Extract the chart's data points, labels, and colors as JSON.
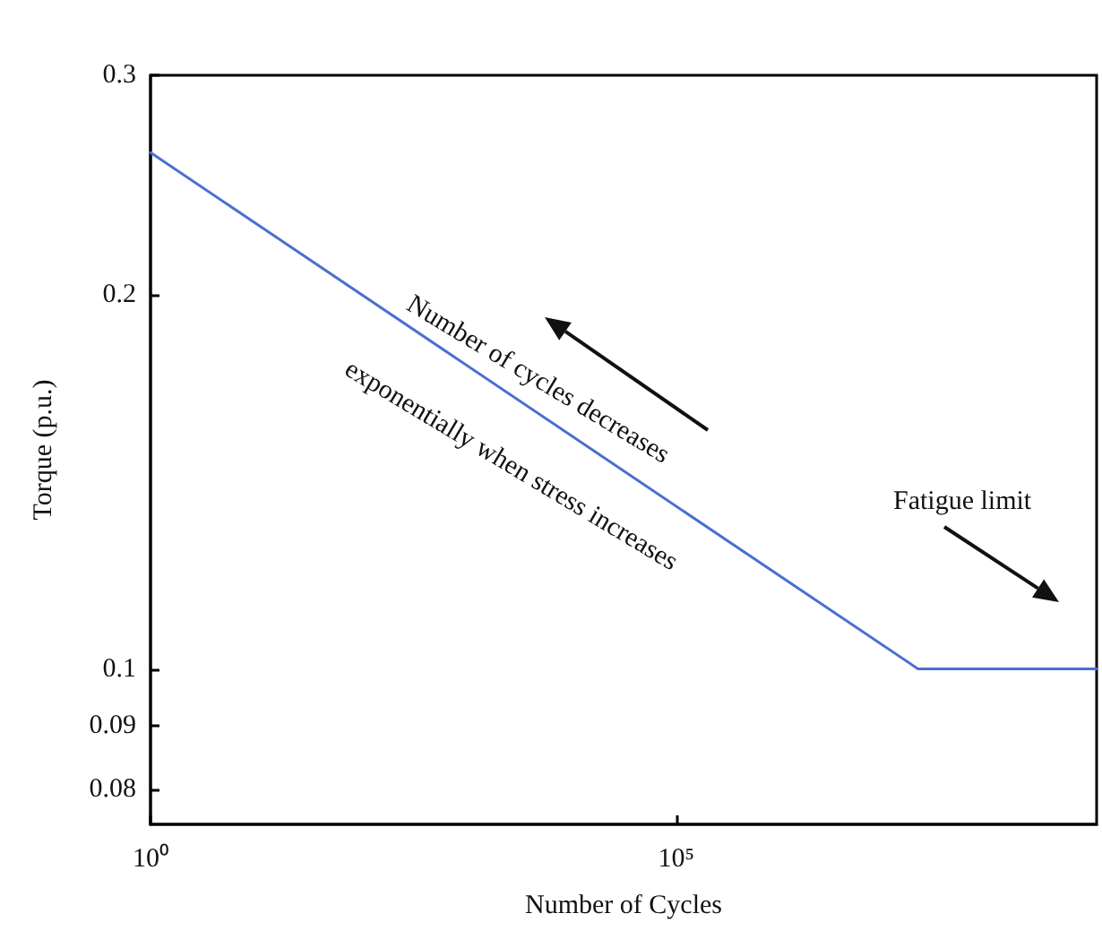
{
  "chart_data": {
    "type": "line",
    "xlabel": "Number of Cycles",
    "ylabel": "Torque (p.u.)",
    "log": "xy",
    "grid": false,
    "marker": "none",
    "line_style": "solid",
    "xlim": [
      1,
      1000000000
    ],
    "xticks": [
      {
        "value": 1,
        "label": "10⁰"
      },
      {
        "value": 100000,
        "label": "10⁵"
      }
    ],
    "ylim": [
      0.075,
      0.3
    ],
    "yticks": [
      0.08,
      0.09,
      0.1,
      0.2,
      0.3
    ],
    "series": [
      {
        "color": "#4a6fd0",
        "x": [
          1,
          20000000,
          1000000000
        ],
        "values": [
          0.26,
          0.1,
          0.1
        ]
      }
    ],
    "annotations": [
      "Number of cycles decreases",
      "exponentially when stress increases",
      "Fatigue limit"
    ]
  }
}
